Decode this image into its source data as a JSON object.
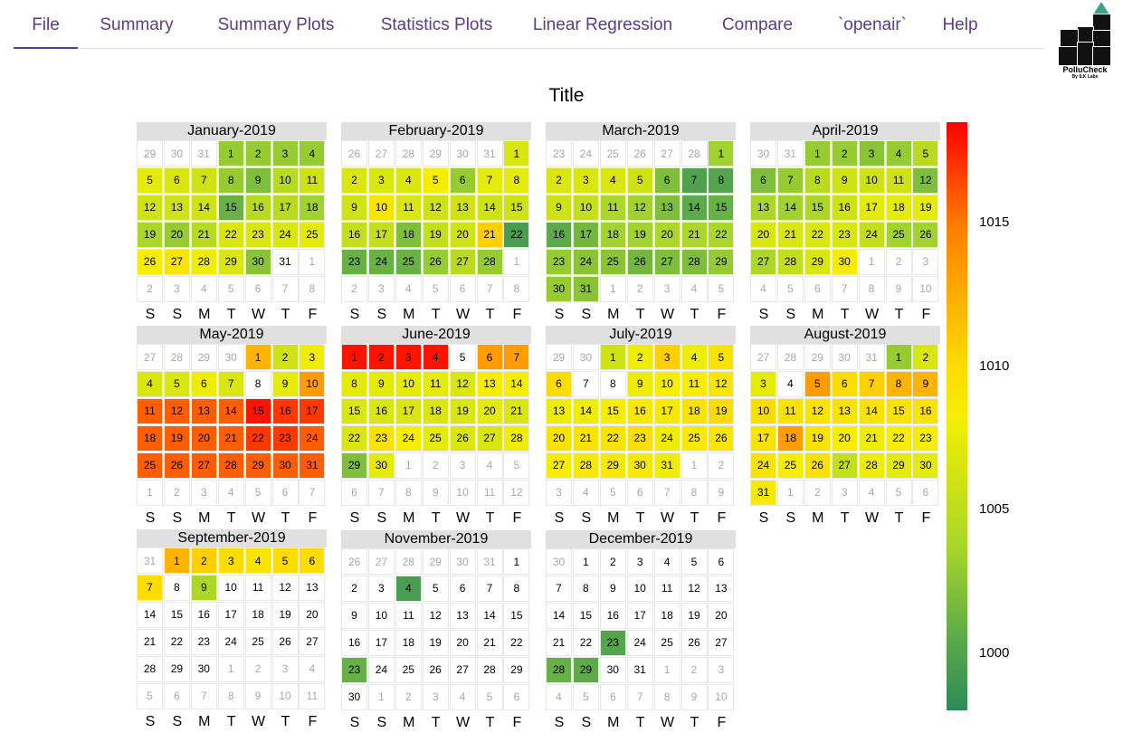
{
  "nav": {
    "tabs": [
      {
        "label": "File",
        "active": true
      },
      {
        "label": "Summary",
        "active": false
      },
      {
        "label": "Summary Plots",
        "active": false
      },
      {
        "label": "Statistics Plots",
        "active": false
      },
      {
        "label": "Linear Regression",
        "active": false
      },
      {
        "label": "Compare",
        "active": false
      },
      {
        "label": "`openair`",
        "active": false
      },
      {
        "label": "Help",
        "active": false
      }
    ]
  },
  "logo": {
    "brand": "PolluCheck",
    "byline": "By ILK Labs",
    "accent_color": "#3aa58a"
  },
  "chart_data": {
    "type": "heatmap",
    "title": "Title",
    "year": 2019,
    "day_labels": [
      "S",
      "S",
      "M",
      "T",
      "W",
      "T",
      "F"
    ],
    "color_scale": {
      "ticks": [
        1015,
        1010,
        1005,
        1000
      ],
      "range": [
        998,
        1018.5
      ],
      "colors": [
        "#2e8b57",
        "#5aa94a",
        "#a9d62a",
        "#f5ef00",
        "#ffd700",
        "#ff8000",
        "#ff0000"
      ]
    },
    "missing_color": "#ffffff",
    "months": [
      {
        "label": "January-2019",
        "start_col": 3,
        "days": 31,
        "values": [
          1004,
          1004,
          1004,
          1004,
          1007.5,
          1007,
          1006.5,
          1004,
          1003,
          1005.5,
          1006.5,
          1006.5,
          1006.5,
          1006.5,
          1002,
          1005.5,
          1005.5,
          1004.5,
          1005,
          1004,
          1005.5,
          1007,
          1007,
          1007,
          1007.5,
          1008.5,
          1009.5,
          1008,
          1007,
          1003.5,
          null
        ]
      },
      {
        "label": "February-2019",
        "start_col": 6,
        "days": 28,
        "values": [
          1007,
          1007,
          1007,
          1007,
          1008.5,
          1004,
          1007.5,
          1007.5,
          1006.5,
          1009.5,
          1007,
          1006.5,
          1006.5,
          1006.5,
          1006.5,
          1006,
          1006,
          1003,
          1006,
          1006.5,
          1012,
          1000,
          1002,
          1002,
          1002,
          1004,
          1005.5,
          1004
        ]
      },
      {
        "label": "March-2019",
        "start_col": 6,
        "days": 31,
        "values": [
          1004.5,
          1007,
          1007,
          1007,
          1006.5,
          1003,
          1000.5,
          1001,
          1006.5,
          1006,
          1005,
          1004.5,
          1003,
          1001.5,
          1002,
          1001.5,
          1002.5,
          1004.5,
          1004.5,
          1005,
          1005,
          1005,
          1004,
          1003.5,
          1003.5,
          1002.5,
          1003,
          1003,
          1004,
          1004,
          1003.5
        ]
      },
      {
        "label": "April-2019",
        "start_col": 2,
        "days": 30,
        "values": [
          1004,
          1004,
          1003.5,
          1004,
          1005.5,
          1003,
          1004,
          1005.5,
          1006.5,
          1006.5,
          1006.5,
          1003,
          1005,
          1004.5,
          1005,
          1006.5,
          1007.5,
          1007.5,
          1007.5,
          1007,
          1007,
          1007,
          1007,
          1006,
          1004.5,
          1004.5,
          1005,
          1006,
          1007,
          1008.5
        ]
      },
      {
        "label": "May-2019",
        "start_col": 4,
        "days": 31,
        "values": [
          1013,
          1006.5,
          1008,
          1007,
          1007,
          1008,
          1007,
          null,
          1007.5,
          1014,
          1016,
          1016,
          1016,
          1016,
          1018,
          1017,
          1017,
          1016,
          1016,
          1016,
          1016,
          1017,
          1017,
          1016,
          1016,
          1016,
          1016,
          1016,
          1016,
          1016,
          1016
        ]
      },
      {
        "label": "June-2019",
        "start_col": 0,
        "days": 30,
        "values": [
          1018,
          1018,
          1018,
          1018,
          null,
          1014,
          1014,
          1007.5,
          1007.5,
          1007.5,
          1007.5,
          1007,
          1008.5,
          1008.5,
          1007,
          1007,
          1007,
          1007,
          1007,
          1007.5,
          1007,
          1007,
          1010,
          1008.5,
          1007.5,
          1007,
          1007,
          1008,
          1003,
          1007.5
        ]
      },
      {
        "label": "July-2019",
        "start_col": 2,
        "days": 31,
        "values": [
          1006.5,
          1008,
          1012,
          1008,
          1010,
          1011,
          null,
          null,
          1008,
          1008.5,
          1008.5,
          1009.5,
          1008,
          1008,
          1008.5,
          1009,
          1009,
          1010,
          1011,
          1010,
          1010,
          1010,
          1010.5,
          1008,
          1009,
          1009.5,
          1008.5,
          1009,
          1009,
          1009,
          1008
        ]
      },
      {
        "label": "August-2019",
        "start_col": 5,
        "days": 31,
        "values": [
          1004,
          1007,
          1007.5,
          null,
          1014,
          1011,
          1012,
          1013,
          1013,
          1011,
          1010,
          1010,
          1010,
          1010,
          1010,
          1010,
          1010,
          1014,
          1010,
          1008.5,
          1008,
          1008.5,
          1008.5,
          1010,
          1008.5,
          1010,
          1006,
          1008,
          1007.5,
          1007.5,
          1009
        ]
      },
      {
        "label": "September-2019",
        "start_col": 1,
        "days": 30,
        "values": [
          1013,
          1012,
          1011,
          1010,
          1011,
          1011,
          1011,
          null,
          1005,
          null,
          null,
          null,
          null,
          null,
          null,
          null,
          null,
          null,
          null,
          null,
          null,
          null,
          null,
          null,
          null,
          null,
          null,
          null,
          null,
          null
        ]
      },
      {
        "label": "November-2019",
        "start_col": 6,
        "days": 30,
        "values": [
          null,
          null,
          null,
          1000,
          null,
          null,
          null,
          null,
          null,
          null,
          null,
          null,
          null,
          null,
          null,
          null,
          null,
          null,
          null,
          null,
          null,
          null,
          1002,
          null,
          null,
          null,
          null,
          null,
          null,
          null
        ]
      },
      {
        "label": "December-2019",
        "start_col": 1,
        "days": 31,
        "values": [
          null,
          null,
          null,
          null,
          null,
          null,
          null,
          null,
          null,
          null,
          null,
          null,
          null,
          null,
          null,
          null,
          null,
          null,
          null,
          null,
          null,
          null,
          1001,
          null,
          null,
          null,
          null,
          1002,
          1001.5,
          null,
          null
        ]
      }
    ]
  }
}
